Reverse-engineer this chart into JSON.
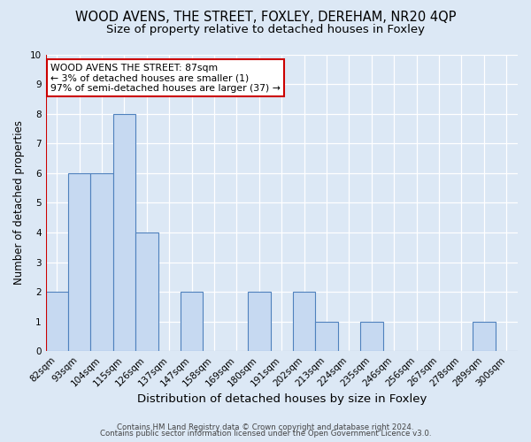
{
  "title": "WOOD AVENS, THE STREET, FOXLEY, DEREHAM, NR20 4QP",
  "subtitle": "Size of property relative to detached houses in Foxley",
  "xlabel": "Distribution of detached houses by size in Foxley",
  "ylabel": "Number of detached properties",
  "footer_line1": "Contains HM Land Registry data © Crown copyright and database right 2024.",
  "footer_line2": "Contains public sector information licensed under the Open Government Licence v3.0.",
  "categories": [
    "82sqm",
    "93sqm",
    "104sqm",
    "115sqm",
    "126sqm",
    "137sqm",
    "147sqm",
    "158sqm",
    "169sqm",
    "180sqm",
    "191sqm",
    "202sqm",
    "213sqm",
    "224sqm",
    "235sqm",
    "246sqm",
    "256sqm",
    "267sqm",
    "278sqm",
    "289sqm",
    "300sqm"
  ],
  "values": [
    2,
    6,
    6,
    8,
    4,
    0,
    2,
    0,
    0,
    2,
    0,
    2,
    1,
    0,
    1,
    0,
    0,
    0,
    0,
    1,
    0
  ],
  "bar_color": "#c6d9f1",
  "bar_edge_color": "#4f81bd",
  "subject_line_color": "#cc0000",
  "annotation_text": "WOOD AVENS THE STREET: 87sqm\n← 3% of detached houses are smaller (1)\n97% of semi-detached houses are larger (37) →",
  "annotation_box_color": "#ffffff",
  "annotation_box_edge_color": "#cc0000",
  "ylim": [
    0,
    10
  ],
  "yticks": [
    0,
    1,
    2,
    3,
    4,
    5,
    6,
    7,
    8,
    9,
    10
  ],
  "background_color": "#dce8f5",
  "axes_background_color": "#dce8f5",
  "grid_color": "#ffffff",
  "title_fontsize": 10.5,
  "subtitle_fontsize": 9.5,
  "xlabel_fontsize": 9.5,
  "ylabel_fontsize": 8.5,
  "tick_fontsize": 7.5,
  "annotation_fontsize": 7.8,
  "footer_fontsize": 6.2
}
